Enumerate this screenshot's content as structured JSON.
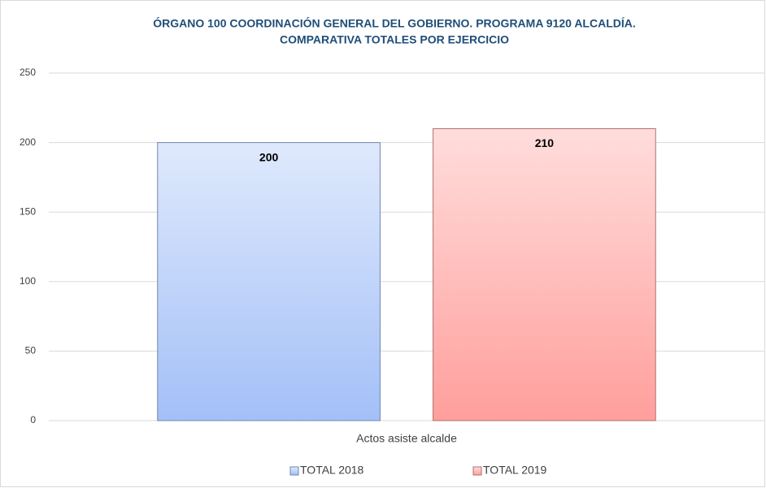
{
  "chart_data": {
    "type": "bar",
    "title": [
      "ÓRGANO 100 COORDINACIÓN GENERAL DEL GOBIERNO. PROGRAMA 9120 ALCALDÍA.",
      "COMPARATIVA TOTALES POR EJERCICIO"
    ],
    "categories": [
      "Actos asiste alcalde"
    ],
    "series": [
      {
        "name": "TOTAL 2018",
        "color": "#a3c0f7",
        "values": [
          200
        ]
      },
      {
        "name": "TOTAL 2019",
        "color": "#ff9f9c",
        "values": [
          210
        ]
      }
    ],
    "ylim": [
      0,
      250
    ],
    "yticks": [
      0,
      50,
      100,
      150,
      200,
      250
    ],
    "grid": true,
    "legend": "bottom"
  }
}
